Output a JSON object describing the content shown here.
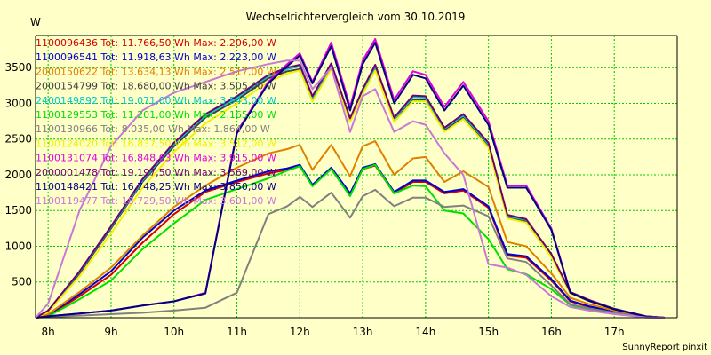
{
  "page": {
    "title": "Wechselrichtervergleich vom 30.10.2019",
    "unit": "W",
    "footer": "SunnyReport pinxit",
    "background": "#ffffc8",
    "grid_color": "#00c800"
  },
  "chart_data": {
    "type": "line",
    "title": "Wechselrichtervergleich vom 30.10.2019",
    "xlabel": "",
    "ylabel": "W",
    "grid": true,
    "legend_placement": "top-left",
    "xlim": [
      7.8,
      18.0
    ],
    "ylim": [
      0,
      3950
    ],
    "x_ticks": [
      8,
      9,
      10,
      11,
      12,
      13,
      14,
      15,
      16,
      17
    ],
    "x_tick_labels": [
      "8h",
      "9h",
      "10h",
      "11h",
      "12h",
      "13h",
      "14h",
      "15h",
      "16h",
      "17h"
    ],
    "y_ticks": [
      500,
      1000,
      1500,
      2000,
      2500,
      3000,
      3500
    ],
    "y_tick_labels": [
      "500",
      "1000",
      "1500",
      "2000",
      "2500",
      "3000",
      "3500"
    ],
    "x": [
      7.8,
      8.0,
      8.5,
      9.0,
      9.5,
      10.0,
      10.5,
      11.0,
      11.5,
      11.8,
      12.0,
      12.2,
      12.5,
      12.8,
      13.0,
      13.2,
      13.5,
      13.8,
      14.0,
      14.3,
      14.6,
      15.0,
      15.3,
      15.6,
      16.0,
      16.3,
      16.6,
      17.0,
      17.5,
      17.8
    ],
    "series": [
      {
        "name": "1100096436",
        "legend": "1100096436 Tot: 11.766,50 Wh Max: 2.206,00 W",
        "color": "#d40000",
        "values": [
          0,
          30,
          300,
          600,
          1050,
          1450,
          1760,
          1900,
          2020,
          2070,
          2120,
          1850,
          2080,
          1720,
          2080,
          2130,
          1740,
          1900,
          1900,
          1740,
          1780,
          1540,
          870,
          840,
          520,
          230,
          150,
          80,
          10,
          0
        ]
      },
      {
        "name": "1100096541",
        "legend": "1100096541 Tot: 11.918,63 Wh Max: 2.223,00 W",
        "color": "#0000d4",
        "values": [
          0,
          40,
          330,
          650,
          1120,
          1500,
          1780,
          1920,
          2050,
          2090,
          2140,
          1860,
          2100,
          1740,
          2100,
          2150,
          1760,
          1920,
          1920,
          1760,
          1800,
          1560,
          890,
          860,
          540,
          240,
          160,
          90,
          10,
          0
        ]
      },
      {
        "name": "2000150622",
        "legend": "2000150622 Tot: 13.634,13 Wh Max: 2.517,00 W",
        "color": "#e08000",
        "values": [
          0,
          50,
          360,
          700,
          1150,
          1550,
          1850,
          2100,
          2300,
          2360,
          2420,
          2070,
          2420,
          1980,
          2400,
          2470,
          2000,
          2230,
          2250,
          1900,
          2050,
          1830,
          1060,
          1000,
          620,
          280,
          190,
          100,
          15,
          0
        ]
      },
      {
        "name": "2000154799",
        "legend": "2000154799 Tot: 18.680,00 Wh Max: 3.505,00 W",
        "color": "#404040",
        "values": [
          0,
          90,
          620,
          1250,
          1900,
          2400,
          2800,
          3050,
          3350,
          3450,
          3480,
          3050,
          3500,
          2750,
          3150,
          3480,
          2750,
          3050,
          3050,
          2620,
          2800,
          2400,
          1400,
          1350,
          870,
          350,
          240,
          120,
          20,
          0
        ]
      },
      {
        "name": "2400149892",
        "legend": "2400149892 Tot: 19.071,00 Wh Max: 3.543,00 W",
        "color": "#00c8c8",
        "values": [
          0,
          95,
          640,
          1270,
          1920,
          2430,
          2830,
          3080,
          3380,
          3480,
          3520,
          3080,
          3540,
          2780,
          3180,
          3520,
          2780,
          3090,
          3080,
          2650,
          2830,
          2430,
          1420,
          1370,
          880,
          355,
          245,
          125,
          20,
          0
        ]
      },
      {
        "name": "1100129553",
        "legend": "1100129553 Tot: 11.201,00 Wh Max: 2.165,00 W",
        "color": "#00e000",
        "values": [
          0,
          20,
          260,
          520,
          960,
          1320,
          1650,
          1800,
          1950,
          2060,
          2120,
          1840,
          2080,
          1700,
          2080,
          2140,
          1740,
          1850,
          1840,
          1500,
          1460,
          1100,
          680,
          610,
          400,
          180,
          110,
          60,
          5,
          0
        ]
      },
      {
        "name": "1100130966",
        "legend": "1100130966 Tot: 8.035,00 Wh Max: 1.864,00 W",
        "color": "#808080",
        "values": [
          0,
          10,
          30,
          50,
          70,
          100,
          140,
          350,
          1450,
          1560,
          1690,
          1550,
          1750,
          1400,
          1700,
          1790,
          1560,
          1680,
          1680,
          1550,
          1570,
          1420,
          830,
          780,
          450,
          190,
          130,
          70,
          5,
          0
        ]
      },
      {
        "name": "1100124020",
        "legend": "1100124020 Tot: 16.837,50 Wh Max: 3.512,00 W",
        "color": "#f0f000",
        "values": [
          0,
          80,
          580,
          1180,
          1820,
          2320,
          2720,
          3000,
          3300,
          3420,
          3460,
          3030,
          3480,
          2740,
          3130,
          3460,
          2740,
          3030,
          3030,
          2600,
          2780,
          2380,
          1390,
          1330,
          850,
          340,
          230,
          115,
          18,
          0
        ]
      },
      {
        "name": "1100131074",
        "legend": "1100131074 Tot: 16.848,63 Wh Max: 3.915,00 W",
        "color": "#e000e0",
        "values": [
          0,
          20,
          60,
          100,
          170,
          230,
          350,
          2600,
          3300,
          3550,
          3700,
          3300,
          3850,
          2950,
          3600,
          3900,
          3050,
          3450,
          3400,
          2950,
          3300,
          2750,
          1850,
          1850,
          1250,
          360,
          240,
          120,
          20,
          0
        ]
      },
      {
        "name": "2000001478",
        "legend": "2000001478 Tot: 19.197,50 Wh Max: 3.569,00 W",
        "color": "#700070",
        "values": [
          0,
          100,
          650,
          1280,
          1940,
          2450,
          2850,
          3100,
          3400,
          3500,
          3540,
          3100,
          3560,
          2790,
          3200,
          3540,
          2800,
          3110,
          3100,
          2660,
          2850,
          2450,
          1440,
          1380,
          890,
          360,
          250,
          125,
          20,
          0
        ]
      },
      {
        "name": "1100148421",
        "legend": "1100148421 Tot: 16.748,25 Wh Max: 3.850,00 W",
        "color": "#000080",
        "values": [
          0,
          20,
          60,
          100,
          170,
          230,
          340,
          2580,
          3280,
          3520,
          3670,
          3280,
          3800,
          2900,
          3550,
          3850,
          3000,
          3400,
          3350,
          2900,
          3250,
          2700,
          1820,
          1820,
          1230,
          350,
          235,
          118,
          18,
          0
        ]
      },
      {
        "name": "1100119477",
        "legend": "1100119477 Tot: 18.729,50 Wh Max: 3.601,00 W",
        "color": "#c878d8",
        "values": [
          0,
          200,
          1500,
          2400,
          2900,
          3150,
          3300,
          3450,
          3550,
          3600,
          3600,
          3200,
          3500,
          2600,
          3100,
          3200,
          2600,
          2750,
          2700,
          2300,
          2000,
          750,
          700,
          600,
          300,
          150,
          100,
          50,
          5,
          0
        ]
      }
    ]
  }
}
